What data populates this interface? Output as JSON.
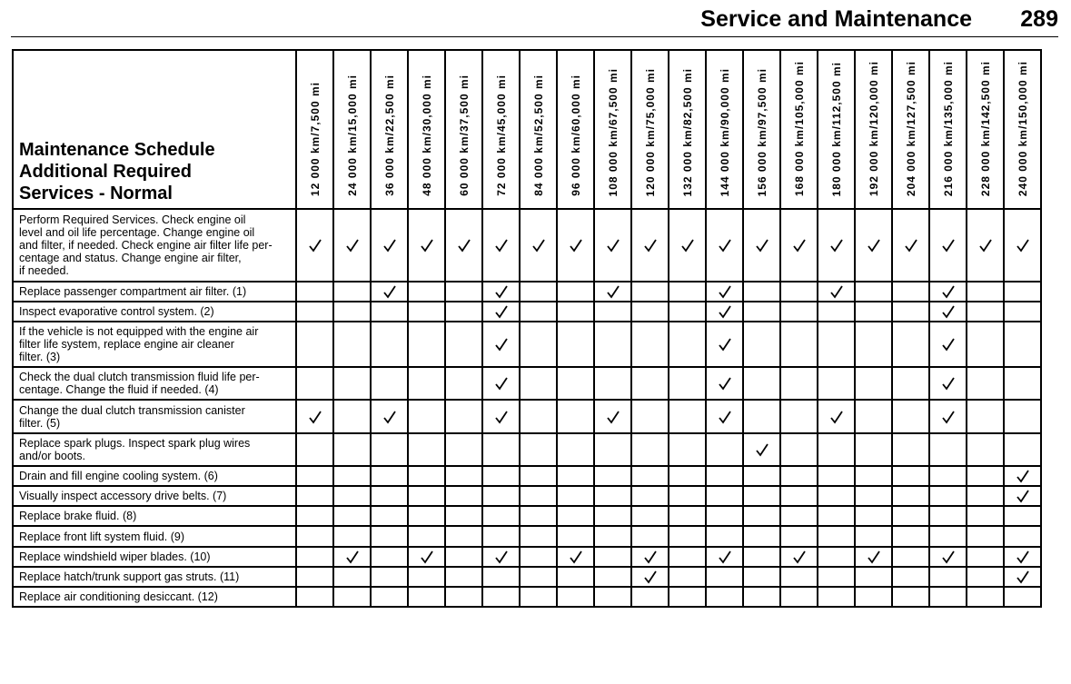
{
  "header": {
    "title": "Service and Maintenance",
    "page": "289"
  },
  "table": {
    "title": "Maintenance Schedule\nAdditional Required\nServices - Normal",
    "columns": [
      "12 000 km/7,500 mi",
      "24 000 km/15,000 mi",
      "36 000 km/22,500 mi",
      "48 000 km/30,000 mi",
      "60 000 km/37,500 mi",
      "72 000 km/45,000 mi",
      "84 000 km/52,500 mi",
      "96 000 km/60,000 mi",
      "108 000 km/67,500 mi",
      "120 000 km/75,000 mi",
      "132 000 km/82,500 mi",
      "144 000 km/90,000 mi",
      "156 000 km/97,500 mi",
      "168 000 km/105,000 mi",
      "180 000 km/112,500 mi",
      "192 000 km/120,000 mi",
      "204 000 km/127,500 mi",
      "216 000 km/135,000 mi",
      "228 000 km/142,500 mi",
      "240 000 km/150,000 mi"
    ],
    "rows": [
      {
        "label": "Perform Required Services. Check engine oil\nlevel and oil life percentage. Change engine oil\nand filter, if needed. Check engine air filter life per-\ncentage and status. Change engine air filter,\nif needed.",
        "checks": [
          true,
          true,
          true,
          true,
          true,
          true,
          true,
          true,
          true,
          true,
          true,
          true,
          true,
          true,
          true,
          true,
          true,
          true,
          true,
          true
        ]
      },
      {
        "label": "Replace passenger compartment air filter. (1)",
        "checks": [
          false,
          false,
          true,
          false,
          false,
          true,
          false,
          false,
          true,
          false,
          false,
          true,
          false,
          false,
          true,
          false,
          false,
          true,
          false,
          false
        ]
      },
      {
        "label": "Inspect evaporative control system. (2)",
        "checks": [
          false,
          false,
          false,
          false,
          false,
          true,
          false,
          false,
          false,
          false,
          false,
          true,
          false,
          false,
          false,
          false,
          false,
          true,
          false,
          false
        ]
      },
      {
        "label": "If the vehicle is not equipped with the engine air\nfilter life system, replace engine air cleaner\nfilter. (3)",
        "checks": [
          false,
          false,
          false,
          false,
          false,
          true,
          false,
          false,
          false,
          false,
          false,
          true,
          false,
          false,
          false,
          false,
          false,
          true,
          false,
          false
        ]
      },
      {
        "label": "Check the dual clutch transmission fluid life per-\ncentage. Change the fluid if needed. (4)",
        "checks": [
          false,
          false,
          false,
          false,
          false,
          true,
          false,
          false,
          false,
          false,
          false,
          true,
          false,
          false,
          false,
          false,
          false,
          true,
          false,
          false
        ]
      },
      {
        "label": "Change the dual clutch transmission canister\nfilter. (5)",
        "checks": [
          true,
          false,
          true,
          false,
          false,
          true,
          false,
          false,
          true,
          false,
          false,
          true,
          false,
          false,
          true,
          false,
          false,
          true,
          false,
          false
        ]
      },
      {
        "label": "Replace spark plugs. Inspect spark plug wires\nand/or boots.",
        "checks": [
          false,
          false,
          false,
          false,
          false,
          false,
          false,
          false,
          false,
          false,
          false,
          false,
          true,
          false,
          false,
          false,
          false,
          false,
          false,
          false
        ]
      },
      {
        "label": "Drain and fill engine cooling system. (6)",
        "checks": [
          false,
          false,
          false,
          false,
          false,
          false,
          false,
          false,
          false,
          false,
          false,
          false,
          false,
          false,
          false,
          false,
          false,
          false,
          false,
          true
        ]
      },
      {
        "label": "Visually inspect accessory drive belts. (7)",
        "checks": [
          false,
          false,
          false,
          false,
          false,
          false,
          false,
          false,
          false,
          false,
          false,
          false,
          false,
          false,
          false,
          false,
          false,
          false,
          false,
          true
        ]
      },
      {
        "label": "Replace brake fluid. (8)",
        "checks": [
          false,
          false,
          false,
          false,
          false,
          false,
          false,
          false,
          false,
          false,
          false,
          false,
          false,
          false,
          false,
          false,
          false,
          false,
          false,
          false
        ]
      },
      {
        "label": "Replace front lift system fluid. (9)",
        "checks": [
          false,
          false,
          false,
          false,
          false,
          false,
          false,
          false,
          false,
          false,
          false,
          false,
          false,
          false,
          false,
          false,
          false,
          false,
          false,
          false
        ]
      },
      {
        "label": "Replace windshield wiper blades. (10)",
        "checks": [
          false,
          true,
          false,
          true,
          false,
          true,
          false,
          true,
          false,
          true,
          false,
          true,
          false,
          true,
          false,
          true,
          false,
          true,
          false,
          true
        ]
      },
      {
        "label": "Replace hatch/trunk support gas struts. (11)",
        "checks": [
          false,
          false,
          false,
          false,
          false,
          false,
          false,
          false,
          false,
          true,
          false,
          false,
          false,
          false,
          false,
          false,
          false,
          false,
          false,
          true
        ]
      },
      {
        "label": "Replace air conditioning desiccant. (12)",
        "checks": [
          false,
          false,
          false,
          false,
          false,
          false,
          false,
          false,
          false,
          false,
          false,
          false,
          false,
          false,
          false,
          false,
          false,
          false,
          false,
          false
        ]
      }
    ]
  }
}
